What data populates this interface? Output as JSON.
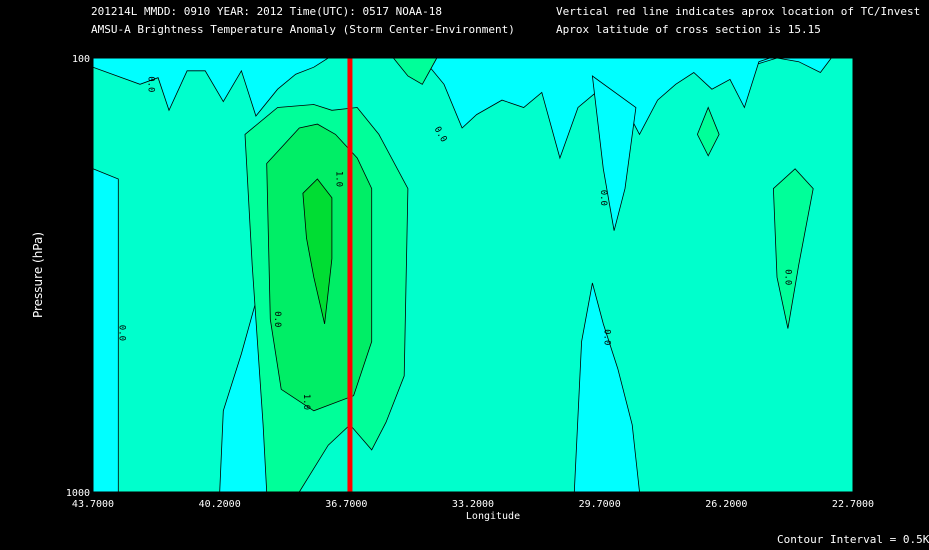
{
  "header": {
    "line1": "201214L  MMDD: 0910 YEAR: 2012 Time(UTC): 0517 NOAA-18",
    "line2": "AMSU-A Brightness Temperature Anomaly (Storm Center-Environment)",
    "note1": "Vertical red line indicates aprox location of TC/Invest",
    "note2": "Aprox latitude of cross section is 15.15"
  },
  "footer": {
    "contour_interval": "Contour Interval = 0.5K"
  },
  "colors": {
    "background": "#000000",
    "cyan": "#00ffff",
    "level0": "#00ffcc",
    "level05": "#00ff99",
    "level10": "#00ee66",
    "level15": "#00dd33",
    "tc_line": "#ff0000"
  },
  "chart_data": {
    "type": "heatmap",
    "title": "AMSU-A Brightness Temperature Anomaly (Storm Center-Environment)",
    "xlabel": "Longitude",
    "ylabel": "Pressure (hPa)",
    "y_scale": "log",
    "ylim": [
      1000,
      100
    ],
    "xlim": [
      43.7,
      22.7
    ],
    "x_tick_labels": [
      "43.7000",
      "40.2000",
      "36.7000",
      "33.2000",
      "29.7000",
      "26.2000",
      "22.7000"
    ],
    "x_ticks": [
      43.7,
      40.2,
      36.7,
      33.2,
      29.7,
      26.2,
      22.7
    ],
    "y_tick_labels": [
      "100",
      "1000"
    ],
    "y_ticks": [
      100,
      1000
    ],
    "y_minor_ticks": [
      150,
      200,
      250,
      300,
      400,
      500,
      600,
      700,
      850,
      925
    ],
    "contour_interval_K": 0.5,
    "tc_longitude": 36.6,
    "contour_labels": [
      {
        "text": "0.0",
        "lon": 42.1,
        "p": 115,
        "angle": 90
      },
      {
        "text": "0.0",
        "lon": 42.9,
        "p": 430,
        "angle": 90
      },
      {
        "text": "0.0",
        "lon": 38.6,
        "p": 400,
        "angle": 90
      },
      {
        "text": "1.0",
        "lon": 36.9,
        "p": 190,
        "angle": 90
      },
      {
        "text": "1.0",
        "lon": 37.8,
        "p": 620,
        "angle": 90
      },
      {
        "text": "0.0",
        "lon": 34.1,
        "p": 150,
        "angle": 60
      },
      {
        "text": "0.0",
        "lon": 29.6,
        "p": 210,
        "angle": 90
      },
      {
        "text": "0.0",
        "lon": 29.5,
        "p": 440,
        "angle": 90
      },
      {
        "text": "0.0",
        "lon": 24.5,
        "p": 320,
        "angle": 90
      }
    ],
    "regions": [
      {
        "level": "cyan-upper",
        "fill": "#00ffff",
        "points": [
          [
            43.7,
            100
          ],
          [
            43.7,
            105
          ],
          [
            42.4,
            115
          ],
          [
            41.9,
            111
          ],
          [
            41.6,
            132
          ],
          [
            41.1,
            107
          ],
          [
            40.6,
            107
          ],
          [
            40.1,
            126
          ],
          [
            39.6,
            107
          ],
          [
            39.2,
            136
          ],
          [
            38.6,
            118
          ],
          [
            38.1,
            109
          ],
          [
            37.6,
            105
          ],
          [
            37.2,
            100
          ],
          [
            34.6,
            100
          ],
          [
            34.0,
            110
          ],
          [
            33.3,
            105
          ],
          [
            32.6,
            108
          ],
          [
            32.0,
            100
          ],
          [
            30.3,
            105
          ],
          [
            29.8,
            103
          ],
          [
            29.3,
            100
          ],
          [
            25.7,
            100
          ],
          [
            25.3,
            103
          ],
          [
            24.8,
            100
          ],
          [
            24.2,
            102
          ],
          [
            23.6,
            108
          ],
          [
            23.3,
            100
          ]
        ]
      },
      {
        "level": "cyan-upper-right",
        "fill": "#00ffff",
        "points": [
          [
            34.6,
            100
          ],
          [
            34.0,
            115
          ],
          [
            33.5,
            145
          ],
          [
            33.1,
            135
          ],
          [
            32.4,
            125
          ],
          [
            31.8,
            130
          ],
          [
            31.3,
            120
          ],
          [
            30.8,
            170
          ],
          [
            30.3,
            130
          ],
          [
            29.8,
            120
          ],
          [
            29.6,
            170
          ],
          [
            29.1,
            125
          ],
          [
            28.6,
            150
          ],
          [
            28.1,
            125
          ],
          [
            27.6,
            115
          ],
          [
            27.1,
            108
          ],
          [
            26.6,
            118
          ],
          [
            26.1,
            112
          ],
          [
            25.7,
            130
          ],
          [
            25.3,
            102
          ],
          [
            25.0,
            100
          ]
        ]
      },
      {
        "level": "cyan-left-edge",
        "fill": "#00ffff",
        "points": [
          [
            43.7,
            180
          ],
          [
            43.0,
            190
          ],
          [
            43.0,
            1000
          ],
          [
            43.7,
            1000
          ]
        ]
      },
      {
        "level": "cyan-left-column",
        "fill": "#00ffff",
        "points": [
          [
            40.2,
            1000
          ],
          [
            40.1,
            650
          ],
          [
            39.6,
            480
          ],
          [
            39.1,
            340
          ],
          [
            38.9,
            700
          ],
          [
            38.6,
            1000
          ]
        ]
      },
      {
        "level": "cyan-right-column",
        "fill": "#00ffff",
        "points": [
          [
            30.4,
            1000
          ],
          [
            30.2,
            450
          ],
          [
            29.9,
            330
          ],
          [
            29.6,
            410
          ],
          [
            29.2,
            520
          ],
          [
            28.8,
            700
          ],
          [
            28.6,
            1000
          ]
        ]
      },
      {
        "level": "cyan-right-tongue",
        "fill": "#00ffff",
        "points": [
          [
            29.9,
            110
          ],
          [
            29.6,
            180
          ],
          [
            29.3,
            250
          ],
          [
            29.0,
            200
          ],
          [
            28.7,
            130
          ]
        ]
      },
      {
        "level": "level05-top",
        "fill": "#00ff99",
        "points": [
          [
            35.4,
            100
          ],
          [
            35.0,
            110
          ],
          [
            34.6,
            115
          ],
          [
            34.2,
            100
          ]
        ]
      },
      {
        "level": "level05-right-diamond",
        "fill": "#00ff99",
        "points": [
          [
            27.0,
            150
          ],
          [
            26.7,
            130
          ],
          [
            26.4,
            150
          ],
          [
            26.7,
            168
          ]
        ]
      },
      {
        "level": "level05-right-lens",
        "fill": "#00ff99",
        "points": [
          [
            24.9,
            200
          ],
          [
            24.3,
            180
          ],
          [
            23.8,
            200
          ],
          [
            24.2,
            300
          ],
          [
            24.5,
            420
          ],
          [
            24.8,
            320
          ]
        ]
      },
      {
        "level": "level05-main",
        "fill": "#00ff99",
        "points": [
          [
            39.5,
            150
          ],
          [
            38.6,
            130
          ],
          [
            37.6,
            128
          ],
          [
            37.1,
            132
          ],
          [
            36.4,
            130
          ],
          [
            35.8,
            150
          ],
          [
            35.0,
            200
          ],
          [
            35.1,
            540
          ],
          [
            35.6,
            690
          ],
          [
            36.0,
            800
          ],
          [
            36.6,
            700
          ],
          [
            37.2,
            780
          ],
          [
            38.0,
            1000
          ],
          [
            38.9,
            1000
          ],
          [
            39.0,
            700
          ],
          [
            39.3,
            300
          ]
        ]
      },
      {
        "level": "level10-core",
        "fill": "#00ee66",
        "points": [
          [
            38.9,
            175
          ],
          [
            38.0,
            145
          ],
          [
            37.5,
            142
          ],
          [
            37.0,
            150
          ],
          [
            36.4,
            170
          ],
          [
            36.0,
            200
          ],
          [
            36.0,
            450
          ],
          [
            36.5,
            600
          ],
          [
            37.6,
            650
          ],
          [
            38.5,
            580
          ],
          [
            38.8,
            400
          ]
        ]
      },
      {
        "level": "level15-core",
        "fill": "#00dd33",
        "points": [
          [
            37.9,
            205
          ],
          [
            37.5,
            190
          ],
          [
            37.1,
            210
          ],
          [
            37.1,
            290
          ],
          [
            37.3,
            410
          ],
          [
            37.6,
            320
          ],
          [
            37.8,
            260
          ]
        ]
      }
    ]
  }
}
